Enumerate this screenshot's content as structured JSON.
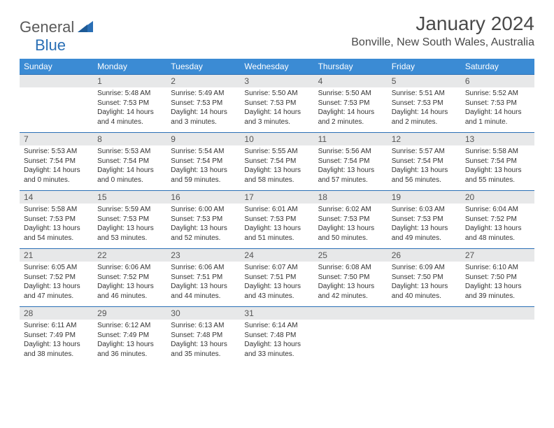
{
  "logo": {
    "text1": "General",
    "text2": "Blue"
  },
  "title": "January 2024",
  "location": "Bonville, New South Wales, Australia",
  "colors": {
    "header_bg": "#3b8bd4",
    "header_text": "#ffffff",
    "daynum_bg": "#e7e8e9",
    "border_accent": "#2a6fb5",
    "body_text": "#333333",
    "title_text": "#4a4a4a",
    "logo_gray": "#5a5a5a",
    "logo_blue": "#2a6fb5",
    "page_bg": "#ffffff"
  },
  "fonts": {
    "title_pt": 28,
    "location_pt": 16,
    "dow_pt": 12,
    "daynum_pt": 12,
    "detail_pt": 10
  },
  "days_of_week": [
    "Sunday",
    "Monday",
    "Tuesday",
    "Wednesday",
    "Thursday",
    "Friday",
    "Saturday"
  ],
  "weeks": [
    {
      "nums": [
        "",
        "1",
        "2",
        "3",
        "4",
        "5",
        "6"
      ],
      "cells": [
        null,
        {
          "sunrise": "Sunrise: 5:48 AM",
          "sunset": "Sunset: 7:53 PM",
          "daylight": "Daylight: 14 hours and 4 minutes."
        },
        {
          "sunrise": "Sunrise: 5:49 AM",
          "sunset": "Sunset: 7:53 PM",
          "daylight": "Daylight: 14 hours and 3 minutes."
        },
        {
          "sunrise": "Sunrise: 5:50 AM",
          "sunset": "Sunset: 7:53 PM",
          "daylight": "Daylight: 14 hours and 3 minutes."
        },
        {
          "sunrise": "Sunrise: 5:50 AM",
          "sunset": "Sunset: 7:53 PM",
          "daylight": "Daylight: 14 hours and 2 minutes."
        },
        {
          "sunrise": "Sunrise: 5:51 AM",
          "sunset": "Sunset: 7:53 PM",
          "daylight": "Daylight: 14 hours and 2 minutes."
        },
        {
          "sunrise": "Sunrise: 5:52 AM",
          "sunset": "Sunset: 7:53 PM",
          "daylight": "Daylight: 14 hours and 1 minute."
        }
      ]
    },
    {
      "nums": [
        "7",
        "8",
        "9",
        "10",
        "11",
        "12",
        "13"
      ],
      "cells": [
        {
          "sunrise": "Sunrise: 5:53 AM",
          "sunset": "Sunset: 7:54 PM",
          "daylight": "Daylight: 14 hours and 0 minutes."
        },
        {
          "sunrise": "Sunrise: 5:53 AM",
          "sunset": "Sunset: 7:54 PM",
          "daylight": "Daylight: 14 hours and 0 minutes."
        },
        {
          "sunrise": "Sunrise: 5:54 AM",
          "sunset": "Sunset: 7:54 PM",
          "daylight": "Daylight: 13 hours and 59 minutes."
        },
        {
          "sunrise": "Sunrise: 5:55 AM",
          "sunset": "Sunset: 7:54 PM",
          "daylight": "Daylight: 13 hours and 58 minutes."
        },
        {
          "sunrise": "Sunrise: 5:56 AM",
          "sunset": "Sunset: 7:54 PM",
          "daylight": "Daylight: 13 hours and 57 minutes."
        },
        {
          "sunrise": "Sunrise: 5:57 AM",
          "sunset": "Sunset: 7:54 PM",
          "daylight": "Daylight: 13 hours and 56 minutes."
        },
        {
          "sunrise": "Sunrise: 5:58 AM",
          "sunset": "Sunset: 7:54 PM",
          "daylight": "Daylight: 13 hours and 55 minutes."
        }
      ]
    },
    {
      "nums": [
        "14",
        "15",
        "16",
        "17",
        "18",
        "19",
        "20"
      ],
      "cells": [
        {
          "sunrise": "Sunrise: 5:58 AM",
          "sunset": "Sunset: 7:53 PM",
          "daylight": "Daylight: 13 hours and 54 minutes."
        },
        {
          "sunrise": "Sunrise: 5:59 AM",
          "sunset": "Sunset: 7:53 PM",
          "daylight": "Daylight: 13 hours and 53 minutes."
        },
        {
          "sunrise": "Sunrise: 6:00 AM",
          "sunset": "Sunset: 7:53 PM",
          "daylight": "Daylight: 13 hours and 52 minutes."
        },
        {
          "sunrise": "Sunrise: 6:01 AM",
          "sunset": "Sunset: 7:53 PM",
          "daylight": "Daylight: 13 hours and 51 minutes."
        },
        {
          "sunrise": "Sunrise: 6:02 AM",
          "sunset": "Sunset: 7:53 PM",
          "daylight": "Daylight: 13 hours and 50 minutes."
        },
        {
          "sunrise": "Sunrise: 6:03 AM",
          "sunset": "Sunset: 7:53 PM",
          "daylight": "Daylight: 13 hours and 49 minutes."
        },
        {
          "sunrise": "Sunrise: 6:04 AM",
          "sunset": "Sunset: 7:52 PM",
          "daylight": "Daylight: 13 hours and 48 minutes."
        }
      ]
    },
    {
      "nums": [
        "21",
        "22",
        "23",
        "24",
        "25",
        "26",
        "27"
      ],
      "cells": [
        {
          "sunrise": "Sunrise: 6:05 AM",
          "sunset": "Sunset: 7:52 PM",
          "daylight": "Daylight: 13 hours and 47 minutes."
        },
        {
          "sunrise": "Sunrise: 6:06 AM",
          "sunset": "Sunset: 7:52 PM",
          "daylight": "Daylight: 13 hours and 46 minutes."
        },
        {
          "sunrise": "Sunrise: 6:06 AM",
          "sunset": "Sunset: 7:51 PM",
          "daylight": "Daylight: 13 hours and 44 minutes."
        },
        {
          "sunrise": "Sunrise: 6:07 AM",
          "sunset": "Sunset: 7:51 PM",
          "daylight": "Daylight: 13 hours and 43 minutes."
        },
        {
          "sunrise": "Sunrise: 6:08 AM",
          "sunset": "Sunset: 7:50 PM",
          "daylight": "Daylight: 13 hours and 42 minutes."
        },
        {
          "sunrise": "Sunrise: 6:09 AM",
          "sunset": "Sunset: 7:50 PM",
          "daylight": "Daylight: 13 hours and 40 minutes."
        },
        {
          "sunrise": "Sunrise: 6:10 AM",
          "sunset": "Sunset: 7:50 PM",
          "daylight": "Daylight: 13 hours and 39 minutes."
        }
      ]
    },
    {
      "nums": [
        "28",
        "29",
        "30",
        "31",
        "",
        "",
        ""
      ],
      "cells": [
        {
          "sunrise": "Sunrise: 6:11 AM",
          "sunset": "Sunset: 7:49 PM",
          "daylight": "Daylight: 13 hours and 38 minutes."
        },
        {
          "sunrise": "Sunrise: 6:12 AM",
          "sunset": "Sunset: 7:49 PM",
          "daylight": "Daylight: 13 hours and 36 minutes."
        },
        {
          "sunrise": "Sunrise: 6:13 AM",
          "sunset": "Sunset: 7:48 PM",
          "daylight": "Daylight: 13 hours and 35 minutes."
        },
        {
          "sunrise": "Sunrise: 6:14 AM",
          "sunset": "Sunset: 7:48 PM",
          "daylight": "Daylight: 13 hours and 33 minutes."
        },
        null,
        null,
        null
      ]
    }
  ]
}
